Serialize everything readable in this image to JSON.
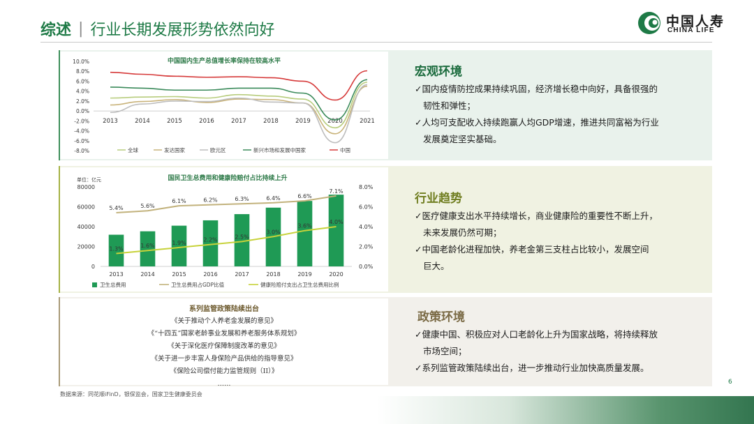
{
  "header": {
    "title_main": "综述",
    "title_sep": "|",
    "title_sub": "行业长期发展形势依然向好",
    "logo_cn": "中国人寿",
    "logo_en": "CHINA LIFE"
  },
  "colors": {
    "brand_green": "#1e7a46",
    "olive": "#a5b244",
    "brown": "#a89a77"
  },
  "sections": {
    "macro": {
      "title": "宏观环境",
      "bullets": [
        "✓国内疫情防控成果持续巩固，经济增长稳中向好，具备很强的",
        "韧性和弹性；",
        "✓人均可支配收入持续跑赢人均GDP增速，推进共同富裕为行业",
        "发展奠定坚实基础。"
      ]
    },
    "industry": {
      "title": "行业趋势",
      "bullets": [
        "✓医疗健康支出水平持续增长，商业健康险的重要性不断上升，",
        "未来发展仍然可期；",
        "✓中国老龄化进程加快，养老金第三支柱占比较小，发展空间",
        "巨大。"
      ]
    },
    "policy": {
      "title": "政策环境",
      "bullets": [
        "✓健康中国、积极应对人口老龄化上升为国家战略，将持续释放",
        "市场空间；",
        "✓系列监管政策陆续出台，进一步推动行业加快高质量发展。"
      ]
    }
  },
  "policy_box": {
    "title": "系列监管政策陆续出台",
    "items": [
      "《关于推动个人养老金发展的意见》",
      "《“十四五”国家老龄事业发展和养老服务体系规划》",
      "《关于深化医疗保障制度改革的意见》",
      "《关于进一步丰富人身保险产品供给的指导意见》",
      "《保险公司偿付能力监管规则（II）》",
      "……"
    ]
  },
  "footer": {
    "source": "数据来源：同花顺iFinD，银保监会，国家卫生健康委员会",
    "page": "6"
  },
  "chart_data": [
    {
      "type": "line",
      "title": "中国国内生产总值增长率保持在较高水平",
      "categories": [
        "2013",
        "2014",
        "2015",
        "2016",
        "2017",
        "2018",
        "2019",
        "2020",
        "2021"
      ],
      "yticks": [
        "10.0%",
        "8.0%",
        "6.0%",
        "4.0%",
        "2.0%",
        "0.0%",
        "-2.0%",
        "-4.0%",
        "-6.0%",
        "-8.0%"
      ],
      "ylim": [
        -8,
        10
      ],
      "series": [
        {
          "name": "全球",
          "color": "#b7cc7c",
          "values": [
            2.6,
            2.8,
            2.9,
            2.6,
            3.3,
            3.0,
            2.4,
            -3.4,
            5.8
          ]
        },
        {
          "name": "发达国家",
          "color": "#c9b37a",
          "values": [
            1.2,
            1.9,
            2.3,
            1.7,
            2.4,
            2.3,
            1.6,
            -4.6,
            5.0
          ]
        },
        {
          "name": "欧元区",
          "color": "#bdbdbd",
          "values": [
            -0.3,
            1.4,
            2.0,
            1.9,
            2.6,
            1.8,
            1.6,
            -6.4,
            5.3
          ]
        },
        {
          "name": "新兴市场和发展中国家",
          "color": "#3a8a5a",
          "values": [
            4.8,
            4.6,
            4.2,
            4.2,
            4.6,
            4.6,
            3.6,
            -1.8,
            6.3
          ]
        },
        {
          "name": "中国",
          "color": "#d63a3a",
          "values": [
            7.8,
            7.4,
            7.0,
            6.8,
            6.9,
            6.7,
            6.0,
            2.2,
            8.1
          ]
        }
      ]
    },
    {
      "type": "bar",
      "title": "国民卫生总费用和健康险赔付占比持续上升",
      "unit_label": "单位：亿元",
      "categories": [
        "2013",
        "2014",
        "2015",
        "2016",
        "2017",
        "2018",
        "2019",
        "2020"
      ],
      "left_ticks": [
        "80000",
        "60000",
        "40000",
        "20000",
        "0"
      ],
      "right_ticks": [
        "8.0%",
        "6.0%",
        "4.0%",
        "2.0%",
        "0.0%"
      ],
      "ylim_left": [
        0,
        80000
      ],
      "ylim_right": [
        0,
        8
      ],
      "series": [
        {
          "name": "卫生总费用",
          "type": "bar",
          "color": "#1f9a55",
          "values": [
            31869,
            35312,
            40975,
            46345,
            52598,
            59122,
            65841,
            72175
          ]
        },
        {
          "name": "卫生总费用占GDP比值",
          "type": "line",
          "color": "#c2b27c",
          "values": [
            5.4,
            5.6,
            6.1,
            6.2,
            6.3,
            6.4,
            6.6,
            7.1
          ],
          "labels": [
            "5.4%",
            "5.6%",
            "6.1%",
            "6.2%",
            "6.3%",
            "6.4%",
            "6.6%",
            "7.1%"
          ]
        },
        {
          "name": "健康险赔付支出占卫生总费用比例",
          "type": "line",
          "color": "#c7d23a",
          "values": [
            1.3,
            1.6,
            1.9,
            2.2,
            2.5,
            3.0,
            3.6,
            4.0
          ],
          "labels": [
            "1.3%",
            "1.6%",
            "1.9%",
            "2.2%",
            "2.5%",
            "3.0%",
            "3.6%",
            "4.0%"
          ]
        }
      ]
    }
  ]
}
